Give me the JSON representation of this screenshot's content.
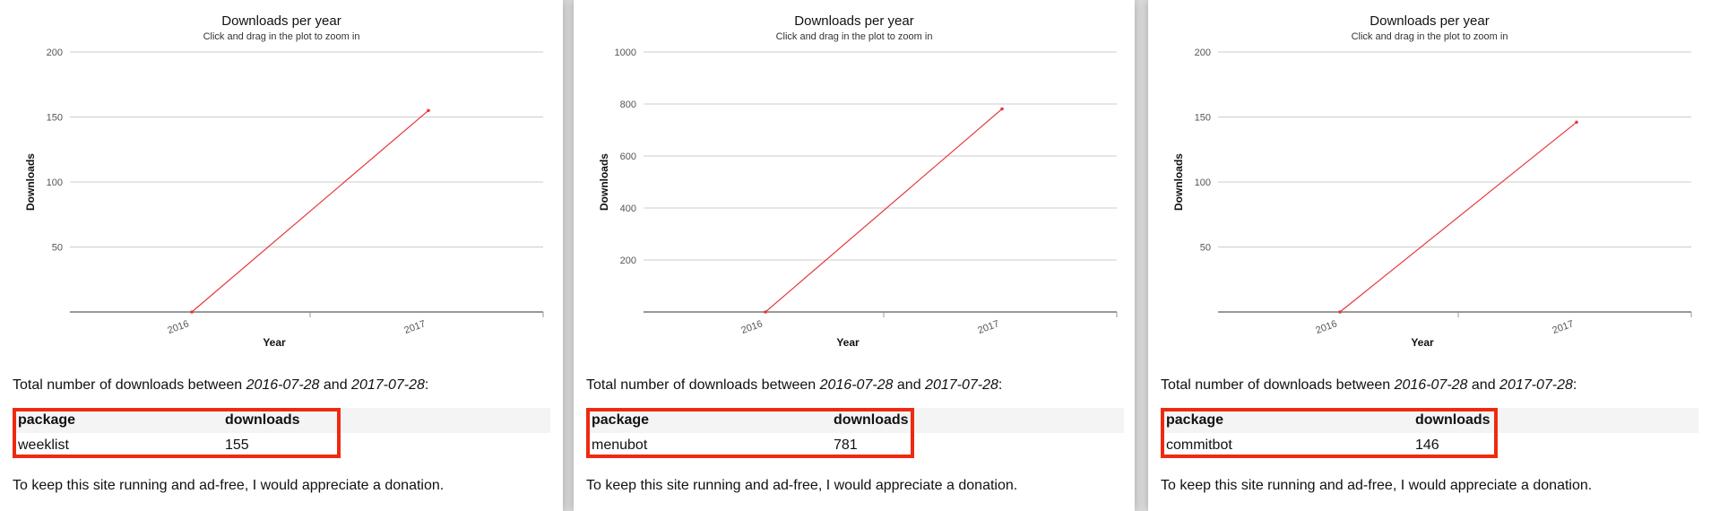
{
  "panels": [
    {
      "summary": {
        "prefix": "Total number of downloads between ",
        "from": "2016-07-28",
        "and": " and ",
        "to": "2017-07-28",
        "suffix": ":"
      },
      "table": {
        "headers": [
          "package",
          "downloads"
        ],
        "row": {
          "package": "weeklist",
          "downloads": "155"
        }
      },
      "donation_text": "To keep this site running and ad-free, I would appreciate a donation."
    },
    {
      "summary": {
        "prefix": "Total number of downloads between ",
        "from": "2016-07-28",
        "and": " and ",
        "to": "2017-07-28",
        "suffix": ":"
      },
      "table": {
        "headers": [
          "package",
          "downloads"
        ],
        "row": {
          "package": "menubot",
          "downloads": "781"
        }
      },
      "donation_text": "To keep this site running and ad-free, I would appreciate a donation."
    },
    {
      "summary": {
        "prefix": "Total number of downloads between ",
        "from": "2016-07-28",
        "and": " and ",
        "to": "2017-07-28",
        "suffix": ":"
      },
      "table": {
        "headers": [
          "package",
          "downloads"
        ],
        "row": {
          "package": "commitbot",
          "downloads": "146"
        }
      },
      "donation_text": "To keep this site running and ad-free, I would appreciate a donation."
    }
  ],
  "chart_data": [
    {
      "type": "line",
      "title": "Downloads per year",
      "subtitle": "Click and drag in the plot to zoom in",
      "xlabel": "Year",
      "ylabel": "Downloads",
      "x": [
        "2016",
        "2017"
      ],
      "series": [
        {
          "values": [
            0,
            155
          ],
          "color": "#e8383d"
        }
      ],
      "ylim": [
        0,
        200
      ],
      "yticks": [
        50,
        100,
        150,
        200
      ],
      "grid": true,
      "legend": "none"
    },
    {
      "type": "line",
      "title": "Downloads per year",
      "subtitle": "Click and drag in the plot to zoom in",
      "xlabel": "Year",
      "ylabel": "Downloads",
      "x": [
        "2016",
        "2017"
      ],
      "series": [
        {
          "values": [
            0,
            781
          ],
          "color": "#e8383d"
        }
      ],
      "ylim": [
        0,
        1000
      ],
      "yticks": [
        200,
        400,
        600,
        800,
        1000
      ],
      "grid": true,
      "legend": "none"
    },
    {
      "type": "line",
      "title": "Downloads per year",
      "subtitle": "Click and drag in the plot to zoom in",
      "xlabel": "Year",
      "ylabel": "Downloads",
      "x": [
        "2016",
        "2017"
      ],
      "series": [
        {
          "values": [
            0,
            146
          ],
          "color": "#e8383d"
        }
      ],
      "ylim": [
        0,
        200
      ],
      "yticks": [
        50,
        100,
        150,
        200
      ],
      "grid": true,
      "legend": "none"
    }
  ],
  "colors": {
    "line": "#e8383d",
    "highlight_border": "#ee2a10",
    "grid": "#cccccc"
  }
}
